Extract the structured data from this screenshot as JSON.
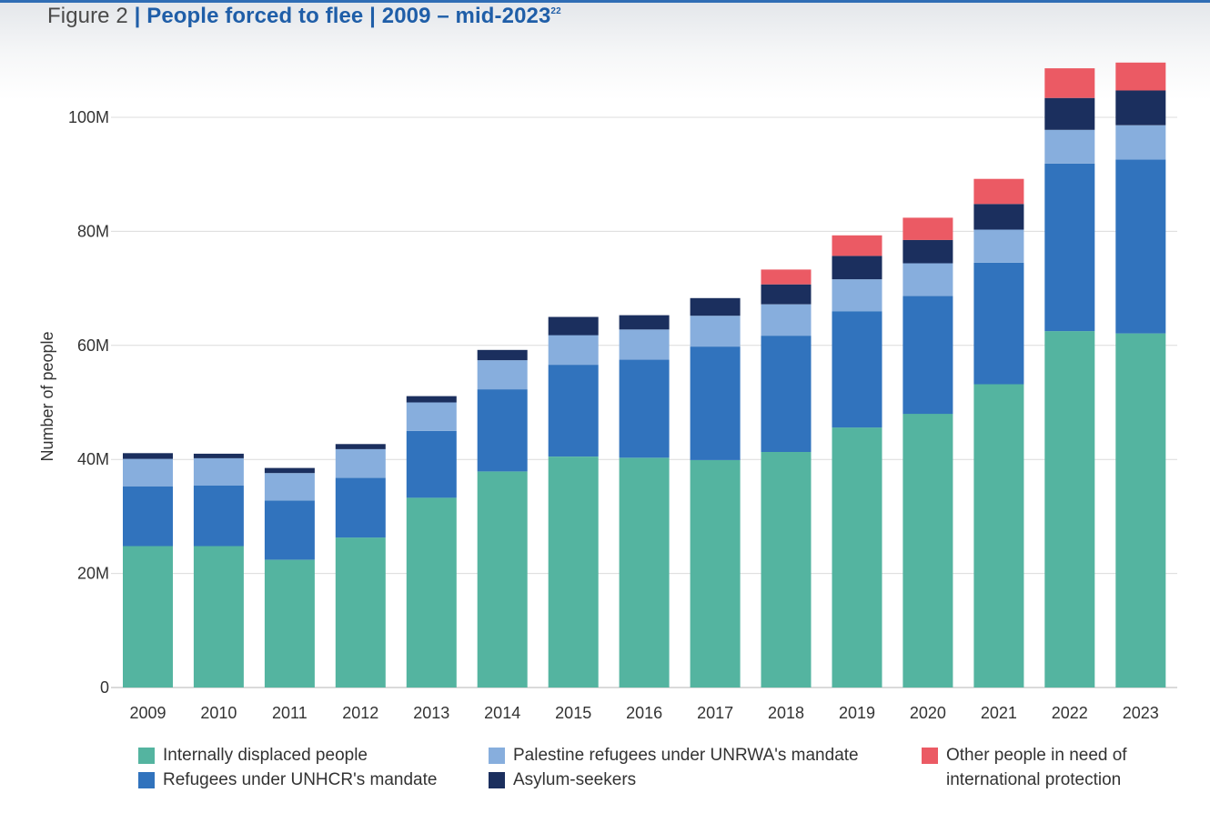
{
  "header": {
    "figure_label": "Figure 2",
    "separator": "|",
    "title_main": "People forced to flee",
    "separator2": "|",
    "title_range": "2009 – mid-2023",
    "footnote": "22"
  },
  "chart_data": {
    "type": "bar",
    "stacked": true,
    "title": "People forced to flee | 2009 – mid-2023",
    "xlabel": "",
    "ylabel": "Number of people",
    "ylim": [
      0,
      110000000
    ],
    "yticks": [
      0,
      20000000,
      40000000,
      60000000,
      80000000,
      100000000
    ],
    "ytick_labels": [
      "0",
      "20M",
      "40M",
      "60M",
      "80M",
      "100M"
    ],
    "grid": "horizontal",
    "legend_position": "bottom",
    "categories": [
      "2009",
      "2010",
      "2011",
      "2012",
      "2013",
      "2014",
      "2015",
      "2016",
      "2017",
      "2018",
      "2019",
      "2020",
      "2021",
      "2022",
      "2023"
    ],
    "series": [
      {
        "name": "Internally displaced people",
        "color": "#54b4a0",
        "values": [
          24.8,
          24.8,
          22.4,
          26.3,
          33.3,
          37.9,
          40.5,
          40.3,
          39.9,
          41.3,
          45.6,
          48.0,
          53.2,
          62.5,
          62.1
        ]
      },
      {
        "name": "Refugees under UNHCR's mandate",
        "color": "#3173bd",
        "values": [
          10.5,
          10.6,
          10.4,
          10.5,
          11.7,
          14.4,
          16.1,
          17.2,
          19.9,
          20.4,
          20.4,
          20.7,
          21.3,
          29.4,
          30.5
        ]
      },
      {
        "name": "Palestine refugees under UNRWA's mandate",
        "color": "#87aedd",
        "values": [
          4.8,
          4.8,
          4.8,
          5.0,
          5.0,
          5.1,
          5.2,
          5.3,
          5.4,
          5.5,
          5.6,
          5.7,
          5.8,
          5.9,
          6.0
        ]
      },
      {
        "name": "Asylum-seekers",
        "color": "#1b2f5e",
        "values": [
          1.0,
          0.8,
          0.9,
          0.9,
          1.1,
          1.8,
          3.2,
          2.5,
          3.1,
          3.5,
          4.1,
          4.1,
          4.5,
          5.6,
          6.1
        ]
      },
      {
        "name": "Other people in need of international protection",
        "color": "#eb5a64",
        "values": [
          0,
          0,
          0,
          0,
          0,
          0,
          0,
          0,
          0,
          2.6,
          3.6,
          3.9,
          4.4,
          5.2,
          4.9
        ]
      }
    ]
  },
  "legend": {
    "items": [
      {
        "label": "Internally displaced people",
        "color": "#54b4a0"
      },
      {
        "label": "Refugees under UNHCR's mandate",
        "color": "#3173bd"
      },
      {
        "label": "Palestine refugees under UNRWA's mandate",
        "color": "#87aedd"
      },
      {
        "label": "Asylum-seekers",
        "color": "#1b2f5e"
      },
      {
        "label_line1": "Other people in need of",
        "label_line2": "international protection",
        "color": "#eb5a64"
      }
    ]
  }
}
